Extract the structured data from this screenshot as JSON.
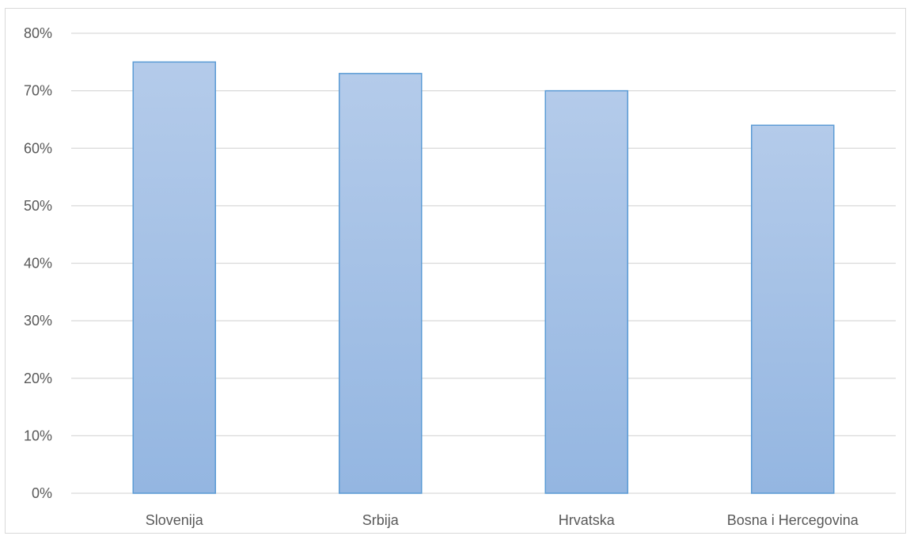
{
  "chart_data": {
    "type": "bar",
    "title": "",
    "xlabel": "",
    "ylabel": "",
    "categories": [
      "Slovenija",
      "Srbija",
      "Hrvatska",
      "Bosna i Hercegovina"
    ],
    "values": [
      0.75,
      0.73,
      0.7,
      0.64
    ],
    "ylim": [
      0,
      0.8
    ],
    "yticks": [
      0,
      0.1,
      0.2,
      0.3,
      0.4,
      0.5,
      0.6,
      0.7,
      0.8
    ],
    "ytick_labels": [
      "0%",
      "10%",
      "20%",
      "30%",
      "40%",
      "50%",
      "60%",
      "70%",
      "80%"
    ],
    "grid": true,
    "legend": "none",
    "colors": {
      "bar_fill_top": "#b4cbea",
      "bar_fill_bottom": "#94b6e1",
      "bar_stroke": "#5b9bd5",
      "gridline": "#d9d9d9",
      "tick_text": "#595959"
    }
  }
}
